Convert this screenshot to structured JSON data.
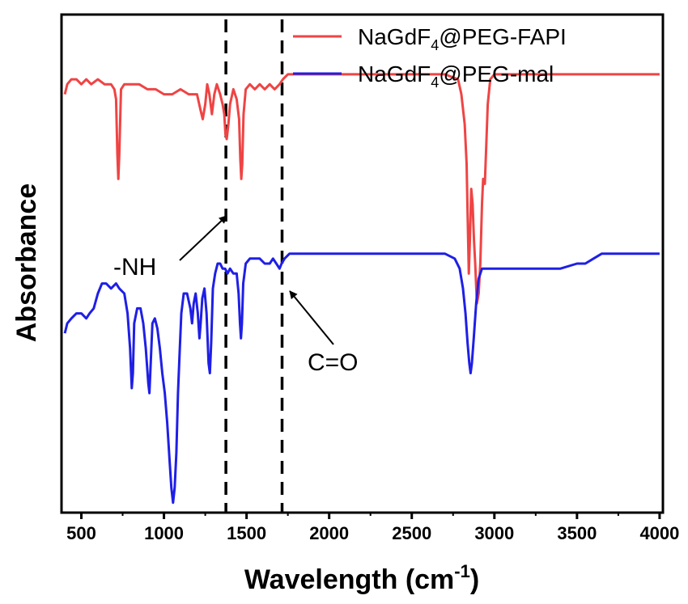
{
  "chart_data": {
    "type": "line",
    "title": "",
    "xlabel": "Wavelength (cm",
    "xlabel_sup": "-1",
    "xlabel_end": ")",
    "ylabel": "Absorbance",
    "xlim": [
      380,
      4020
    ],
    "ylim": [
      0,
      100
    ],
    "x_ticks": [
      500,
      1000,
      1500,
      2000,
      2500,
      3000,
      3500,
      4000
    ],
    "x_tick_labels": [
      "500",
      "1000",
      "1500",
      "2000",
      "2500",
      "3000",
      "3500",
      "4000"
    ],
    "y_ticks_visible": false,
    "grid": false,
    "legend": {
      "placement": "top-right"
    },
    "series": [
      {
        "name_base": "NaGdF",
        "name_sub": "4",
        "name_rest": "@PEG-FAPI",
        "color": "#ef4444",
        "points": [
          [
            400,
            84
          ],
          [
            415,
            86
          ],
          [
            440,
            87
          ],
          [
            470,
            87
          ],
          [
            500,
            86
          ],
          [
            530,
            87
          ],
          [
            560,
            86
          ],
          [
            600,
            87
          ],
          [
            640,
            86
          ],
          [
            680,
            86
          ],
          [
            700,
            85
          ],
          [
            710,
            83
          ],
          [
            718,
            72
          ],
          [
            724,
            67
          ],
          [
            730,
            72
          ],
          [
            740,
            85
          ],
          [
            760,
            86
          ],
          [
            800,
            86
          ],
          [
            850,
            86
          ],
          [
            900,
            85
          ],
          [
            950,
            85
          ],
          [
            1000,
            84
          ],
          [
            1050,
            84
          ],
          [
            1100,
            85
          ],
          [
            1150,
            84
          ],
          [
            1200,
            84
          ],
          [
            1220,
            81
          ],
          [
            1235,
            79
          ],
          [
            1250,
            82
          ],
          [
            1262,
            86
          ],
          [
            1275,
            84
          ],
          [
            1290,
            80
          ],
          [
            1305,
            84
          ],
          [
            1320,
            86
          ],
          [
            1340,
            84
          ],
          [
            1355,
            82
          ],
          [
            1365,
            80
          ],
          [
            1372,
            76
          ],
          [
            1380,
            75
          ],
          [
            1390,
            78
          ],
          [
            1400,
            82
          ],
          [
            1420,
            85
          ],
          [
            1440,
            83
          ],
          [
            1455,
            79
          ],
          [
            1462,
            71
          ],
          [
            1468,
            67
          ],
          [
            1474,
            70
          ],
          [
            1482,
            80
          ],
          [
            1495,
            85
          ],
          [
            1520,
            86
          ],
          [
            1550,
            85
          ],
          [
            1580,
            86
          ],
          [
            1610,
            85
          ],
          [
            1640,
            86
          ],
          [
            1670,
            85
          ],
          [
            1700,
            86
          ],
          [
            1720,
            87
          ],
          [
            1750,
            88
          ],
          [
            1800,
            88
          ],
          [
            1900,
            88
          ],
          [
            2000,
            88
          ],
          [
            2100,
            88
          ],
          [
            2200,
            88
          ],
          [
            2300,
            88
          ],
          [
            2400,
            88
          ],
          [
            2500,
            88
          ],
          [
            2600,
            88
          ],
          [
            2700,
            88
          ],
          [
            2780,
            87
          ],
          [
            2800,
            84
          ],
          [
            2820,
            78
          ],
          [
            2832,
            70
          ],
          [
            2838,
            60
          ],
          [
            2845,
            48
          ],
          [
            2852,
            55
          ],
          [
            2860,
            65
          ],
          [
            2868,
            62
          ],
          [
            2876,
            55
          ],
          [
            2884,
            50
          ],
          [
            2894,
            42
          ],
          [
            2905,
            44
          ],
          [
            2915,
            50
          ],
          [
            2925,
            62
          ],
          [
            2932,
            67
          ],
          [
            2942,
            66
          ],
          [
            2950,
            73
          ],
          [
            2960,
            82
          ],
          [
            2975,
            87
          ],
          [
            3000,
            88
          ],
          [
            3100,
            88
          ],
          [
            3200,
            88
          ],
          [
            3300,
            88
          ],
          [
            3400,
            88
          ],
          [
            3500,
            88
          ],
          [
            3600,
            88
          ],
          [
            3700,
            88
          ],
          [
            3800,
            88
          ],
          [
            3900,
            88
          ],
          [
            4000,
            88
          ]
        ]
      },
      {
        "name_base": "NaGdF",
        "name_sub": "4",
        "name_rest": "@PEG-mal",
        "color": "#1f1fe6",
        "points": [
          [
            400,
            36
          ],
          [
            415,
            38
          ],
          [
            440,
            39
          ],
          [
            470,
            40
          ],
          [
            500,
            40
          ],
          [
            530,
            39
          ],
          [
            550,
            40
          ],
          [
            575,
            41
          ],
          [
            600,
            44
          ],
          [
            625,
            46
          ],
          [
            650,
            46
          ],
          [
            680,
            45
          ],
          [
            710,
            46
          ],
          [
            730,
            45
          ],
          [
            760,
            44
          ],
          [
            780,
            40
          ],
          [
            795,
            33
          ],
          [
            805,
            25
          ],
          [
            812,
            28
          ],
          [
            820,
            38
          ],
          [
            838,
            41
          ],
          [
            858,
            41
          ],
          [
            875,
            38
          ],
          [
            890,
            33
          ],
          [
            905,
            26
          ],
          [
            912,
            24
          ],
          [
            920,
            30
          ],
          [
            930,
            38
          ],
          [
            945,
            39
          ],
          [
            960,
            37
          ],
          [
            975,
            33
          ],
          [
            990,
            28
          ],
          [
            1005,
            24
          ],
          [
            1020,
            18
          ],
          [
            1035,
            10
          ],
          [
            1045,
            5
          ],
          [
            1055,
            2
          ],
          [
            1065,
            5
          ],
          [
            1075,
            12
          ],
          [
            1085,
            24
          ],
          [
            1095,
            32
          ],
          [
            1105,
            40
          ],
          [
            1120,
            44
          ],
          [
            1140,
            44
          ],
          [
            1160,
            41
          ],
          [
            1170,
            38
          ],
          [
            1180,
            42
          ],
          [
            1192,
            44
          ],
          [
            1205,
            40
          ],
          [
            1215,
            35
          ],
          [
            1222,
            38
          ],
          [
            1232,
            43
          ],
          [
            1245,
            45
          ],
          [
            1258,
            40
          ],
          [
            1270,
            30
          ],
          [
            1278,
            28
          ],
          [
            1286,
            34
          ],
          [
            1296,
            45
          ],
          [
            1310,
            48
          ],
          [
            1325,
            50
          ],
          [
            1340,
            50
          ],
          [
            1355,
            49
          ],
          [
            1370,
            49
          ],
          [
            1385,
            48
          ],
          [
            1400,
            49
          ],
          [
            1420,
            48
          ],
          [
            1440,
            48
          ],
          [
            1452,
            44
          ],
          [
            1460,
            38
          ],
          [
            1466,
            35
          ],
          [
            1472,
            38
          ],
          [
            1480,
            46
          ],
          [
            1495,
            50
          ],
          [
            1520,
            51
          ],
          [
            1550,
            51
          ],
          [
            1580,
            51
          ],
          [
            1610,
            50
          ],
          [
            1640,
            50
          ],
          [
            1660,
            51
          ],
          [
            1680,
            50
          ],
          [
            1700,
            49
          ],
          [
            1712,
            50
          ],
          [
            1730,
            51
          ],
          [
            1760,
            52
          ],
          [
            1800,
            52
          ],
          [
            1900,
            52
          ],
          [
            2000,
            52
          ],
          [
            2100,
            52
          ],
          [
            2200,
            52
          ],
          [
            2300,
            52
          ],
          [
            2400,
            52
          ],
          [
            2500,
            52
          ],
          [
            2600,
            52
          ],
          [
            2700,
            52
          ],
          [
            2760,
            51
          ],
          [
            2790,
            49
          ],
          [
            2810,
            45
          ],
          [
            2825,
            40
          ],
          [
            2838,
            34
          ],
          [
            2848,
            30
          ],
          [
            2856,
            28
          ],
          [
            2864,
            30
          ],
          [
            2875,
            35
          ],
          [
            2890,
            42
          ],
          [
            2905,
            47
          ],
          [
            2925,
            49
          ],
          [
            2950,
            49
          ],
          [
            3000,
            49
          ],
          [
            3100,
            49
          ],
          [
            3200,
            49
          ],
          [
            3300,
            49
          ],
          [
            3400,
            49
          ],
          [
            3500,
            50
          ],
          [
            3550,
            50
          ],
          [
            3600,
            51
          ],
          [
            3650,
            52
          ],
          [
            3700,
            52
          ],
          [
            3800,
            52
          ],
          [
            3900,
            52
          ],
          [
            4000,
            52
          ]
        ]
      }
    ],
    "reference_lines": [
      {
        "x": 1375,
        "style": "dashed",
        "color": "#000000"
      },
      {
        "x": 1715,
        "style": "dashed",
        "color": "#000000"
      }
    ],
    "annotations": [
      {
        "text": "-NH",
        "target": [
          1375,
          62
        ]
      },
      {
        "text": "C=O",
        "target": [
          1712,
          50
        ]
      }
    ]
  }
}
